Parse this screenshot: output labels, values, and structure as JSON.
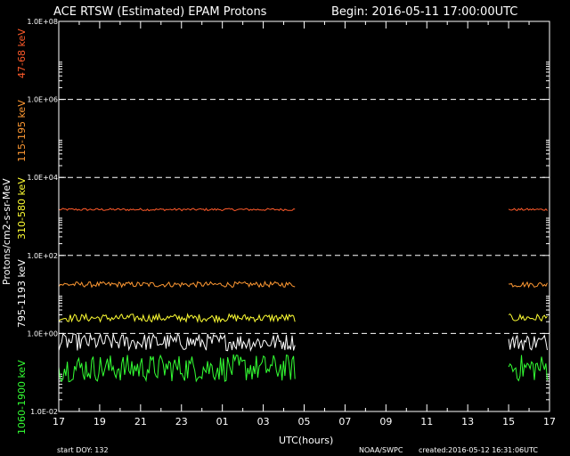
{
  "chart_data": {
    "type": "line",
    "title": "ACE RTSW (Estimated) EPAM Protons",
    "begin_label": "Begin: 2016-05-11 17:00:00UTC",
    "ylabel": "Protons/cm2-s-sr-MeV",
    "xlabel": "UTC(hours)",
    "y_scale": "log",
    "ylim": [
      0.01,
      100000000
    ],
    "y_ticks": [
      "1.0E-02",
      "1.0E+00",
      "1.0E+02",
      "1.0E+04",
      "1.0E+06",
      "1.0E+08"
    ],
    "dashed_grid_at": [
      "1.0E+00",
      "1.0E+02",
      "1.0E+04",
      "1.0E+06"
    ],
    "x_ticks": [
      "17",
      "19",
      "21",
      "23",
      "01",
      "03",
      "05",
      "07",
      "09",
      "11",
      "13",
      "15",
      "17"
    ],
    "footer": {
      "start_doy": "start DOY:  132",
      "source": "NOAA/SWPC",
      "created": "created:2016-05-12 16:31:06UTC"
    },
    "data_gap_hours": [
      11.6,
      22.0
    ],
    "series": [
      {
        "name": "47-68 keV",
        "color": "#ff5a2a",
        "level": 1500,
        "jitter": 0.03
      },
      {
        "name": "115-195 keV",
        "color": "#ff9933",
        "level": 18,
        "jitter": 0.07
      },
      {
        "name": "310-580 keV",
        "color": "#ffff33",
        "level": 2.5,
        "jitter": 0.1
      },
      {
        "name": "795-1193 keV",
        "color": "#ffffff",
        "level": 0.6,
        "jitter": 0.22
      },
      {
        "name": "1060-1900 keV",
        "color": "#33ff33",
        "level": 0.13,
        "jitter": 0.35
      }
    ]
  }
}
